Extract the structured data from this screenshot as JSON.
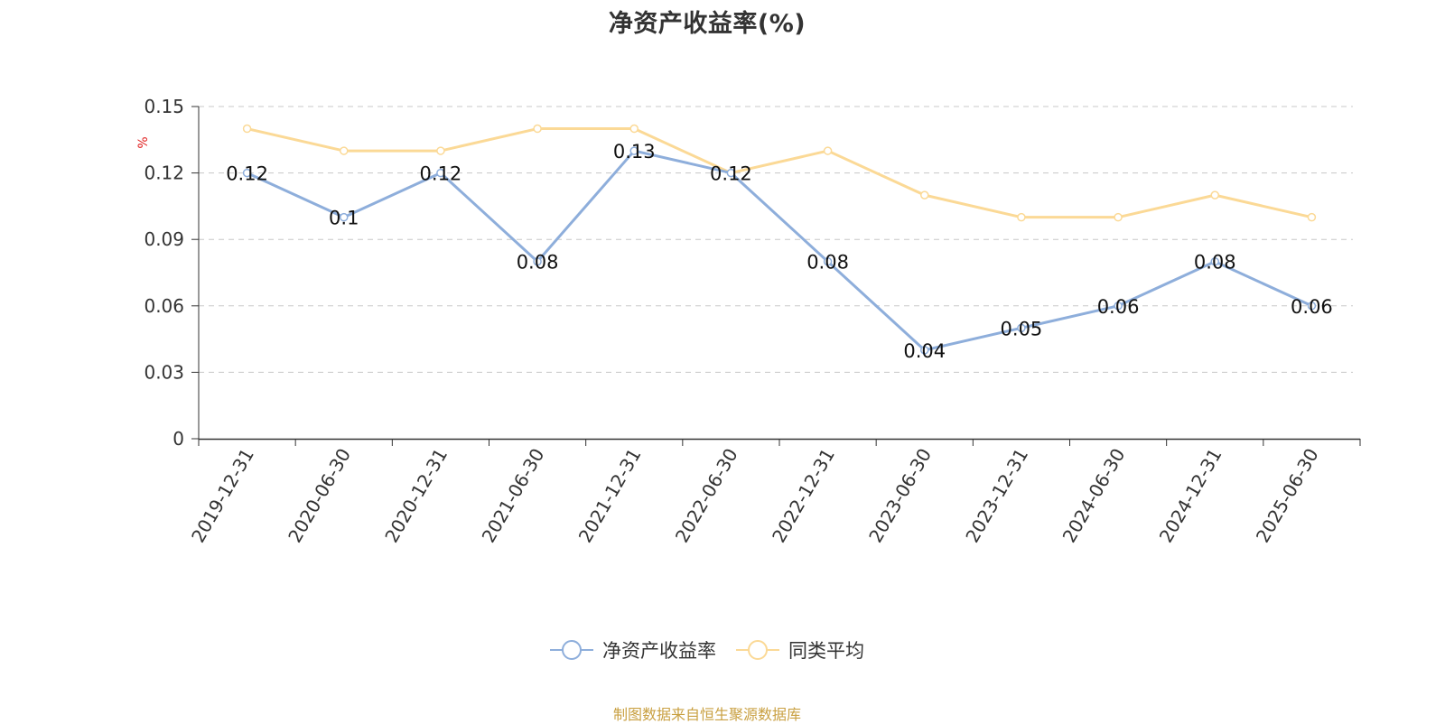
{
  "chart_data": {
    "type": "line",
    "title": "净资产收益率(%)",
    "ylabel": "%",
    "xlabel": "",
    "ylim": [
      0,
      0.15
    ],
    "yticks": [
      "0",
      "0.03",
      "0.06",
      "0.09",
      "0.12",
      "0.15"
    ],
    "grid": true,
    "legend_position": "bottom",
    "categories": [
      "2019-12-31",
      "2020-06-30",
      "2020-12-31",
      "2021-06-30",
      "2021-12-31",
      "2022-06-30",
      "2022-12-31",
      "2023-06-30",
      "2023-12-31",
      "2024-06-30",
      "2024-12-31",
      "2025-06-30"
    ],
    "series": [
      {
        "name": "净资产收益率",
        "color": "#8eaedb",
        "values": [
          0.12,
          0.1,
          0.12,
          0.08,
          0.13,
          0.12,
          0.08,
          0.04,
          0.05,
          0.06,
          0.08,
          0.06
        ],
        "labels": [
          "0.12",
          "0.1",
          "0.12",
          "0.08",
          "0.13",
          "0.12",
          "0.08",
          "0.04",
          "0.05",
          "0.06",
          "0.08",
          "0.06"
        ]
      },
      {
        "name": "同类平均",
        "color": "#fbd996",
        "values": [
          0.14,
          0.13,
          0.13,
          0.14,
          0.14,
          0.12,
          0.13,
          0.11,
          0.1,
          0.1,
          0.11,
          0.1
        ]
      }
    ]
  },
  "source_note": "制图数据来自恒生聚源数据库"
}
